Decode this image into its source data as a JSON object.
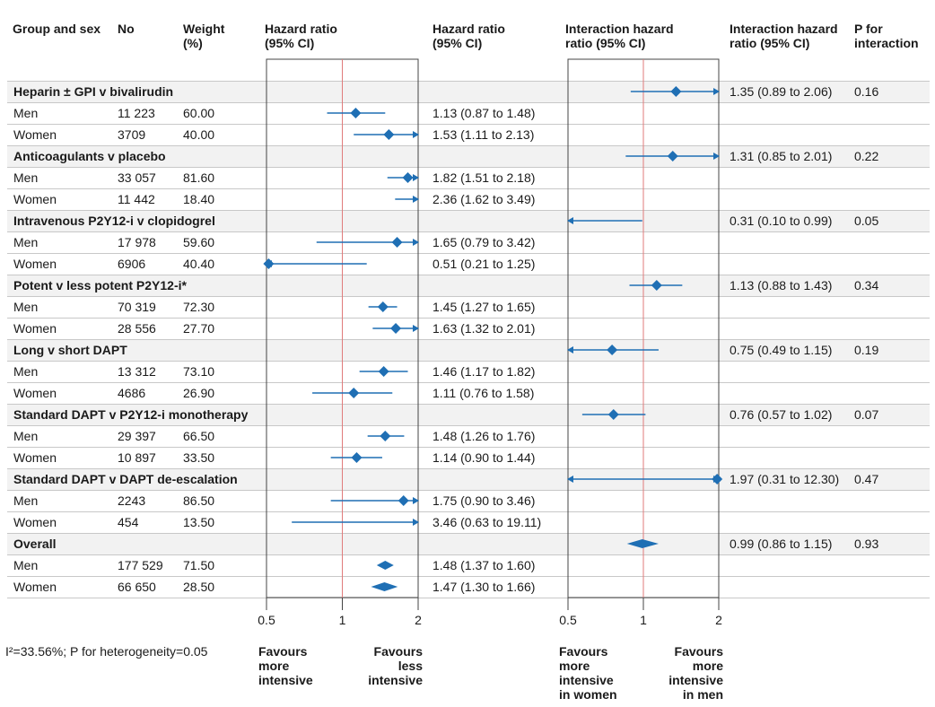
{
  "headers": {
    "group": "Group and sex",
    "no": "No",
    "weight": "Weight\n(%)",
    "hr_plot": "Hazard ratio\n(95% CI)",
    "hr_text": "Hazard ratio\n(95% CI)",
    "ihr_plot": "Interaction hazard\nratio (95% CI)",
    "ihr_text": "Interaction hazard\nratio (95% CI)",
    "p": "P for\ninteraction"
  },
  "footnote": "I²=33.56%; P for heterogeneity=0.05",
  "favours": {
    "left_hr": "Favours\nmore\nintensive",
    "right_hr": "Favours\nless\nintensive",
    "left_ihr": "Favours\nmore\nintensive\nin women",
    "right_ihr": "Favours\nmore\nintensive\nin men"
  },
  "colors": {
    "marker": "#1f6fb4",
    "refline": "#e07b7b",
    "band": "#f2f2f2",
    "frame": "#444444"
  },
  "chart_data": [
    {
      "type": "forest",
      "title": "Hazard ratio (95% CI)",
      "scale": "log",
      "xlim": [
        0.5,
        2
      ],
      "ticks": [
        "0.5",
        "1",
        "2"
      ],
      "reference": 1,
      "rows": [
        {
          "group": "Heparin ± GPI v bivalirudin",
          "label": "Men",
          "n": "11 223",
          "weight": "60.00",
          "hr": 1.13,
          "lo": 0.87,
          "hi": 1.48,
          "text": "1.13 (0.87 to 1.48)"
        },
        {
          "group": "Heparin ± GPI v bivalirudin",
          "label": "Women",
          "n": "3709",
          "weight": "40.00",
          "hr": 1.53,
          "lo": 1.11,
          "hi": 2.13,
          "text": "1.53 (1.11 to 2.13)"
        },
        {
          "group": "Anticoagulants v placebo",
          "label": "Men",
          "n": "33 057",
          "weight": "81.60",
          "hr": 1.82,
          "lo": 1.51,
          "hi": 2.18,
          "text": "1.82 (1.51 to 2.18)"
        },
        {
          "group": "Anticoagulants v placebo",
          "label": "Women",
          "n": "11 442",
          "weight": "18.40",
          "hr": 2.36,
          "lo": 1.62,
          "hi": 3.49,
          "text": "2.36 (1.62 to 3.49)"
        },
        {
          "group": "Intravenous P2Y12-i v clopidogrel",
          "label": "Men",
          "n": "17 978",
          "weight": "59.60",
          "hr": 1.65,
          "lo": 0.79,
          "hi": 3.42,
          "text": "1.65 (0.79 to 3.42)"
        },
        {
          "group": "Intravenous P2Y12-i v clopidogrel",
          "label": "Women",
          "n": "6906",
          "weight": "40.40",
          "hr": 0.51,
          "lo": 0.21,
          "hi": 1.25,
          "text": "0.51 (0.21 to 1.25)"
        },
        {
          "group": "Potent v less potent P2Y12-i*",
          "label": "Men",
          "n": "70 319",
          "weight": "72.30",
          "hr": 1.45,
          "lo": 1.27,
          "hi": 1.65,
          "text": "1.45 (1.27 to 1.65)"
        },
        {
          "group": "Potent v less potent P2Y12-i*",
          "label": "Women",
          "n": "28 556",
          "weight": "27.70",
          "hr": 1.63,
          "lo": 1.32,
          "hi": 2.01,
          "text": "1.63 (1.32 to 2.01)"
        },
        {
          "group": "Long v short DAPT",
          "label": "Men",
          "n": "13 312",
          "weight": "73.10",
          "hr": 1.46,
          "lo": 1.17,
          "hi": 1.82,
          "text": "1.46 (1.17 to 1.82)"
        },
        {
          "group": "Long v short DAPT",
          "label": "Women",
          "n": "4686",
          "weight": "26.90",
          "hr": 1.11,
          "lo": 0.76,
          "hi": 1.58,
          "text": "1.11 (0.76 to 1.58)"
        },
        {
          "group": "Standard DAPT v P2Y12-i monotherapy",
          "label": "Men",
          "n": "29 397",
          "weight": "66.50",
          "hr": 1.48,
          "lo": 1.26,
          "hi": 1.76,
          "text": "1.48 (1.26 to 1.76)"
        },
        {
          "group": "Standard DAPT v P2Y12-i monotherapy",
          "label": "Women",
          "n": "10 897",
          "weight": "33.50",
          "hr": 1.14,
          "lo": 0.9,
          "hi": 1.44,
          "text": "1.14 (0.90 to 1.44)"
        },
        {
          "group": "Standard DAPT v DAPT de-escalation",
          "label": "Men",
          "n": "2243",
          "weight": "86.50",
          "hr": 1.75,
          "lo": 0.9,
          "hi": 3.46,
          "text": "1.75 (0.90 to 3.46)"
        },
        {
          "group": "Standard DAPT v DAPT de-escalation",
          "label": "Women",
          "n": "454",
          "weight": "13.50",
          "hr": 3.46,
          "lo": 0.63,
          "hi": 19.11,
          "text": "3.46 (0.63 to 19.11)"
        },
        {
          "group": "Overall",
          "label": "Men",
          "n": "177 529",
          "weight": "71.50",
          "hr": 1.48,
          "lo": 1.37,
          "hi": 1.6,
          "text": "1.48 (1.37 to 1.60)",
          "pooled": true
        },
        {
          "group": "Overall",
          "label": "Women",
          "n": "66 650",
          "weight": "28.50",
          "hr": 1.47,
          "lo": 1.3,
          "hi": 1.66,
          "text": "1.47 (1.30 to 1.66)",
          "pooled": true
        }
      ]
    },
    {
      "type": "forest",
      "title": "Interaction hazard ratio (95% CI)",
      "scale": "log",
      "xlim": [
        0.5,
        2
      ],
      "ticks": [
        "0.5",
        "1",
        "2"
      ],
      "reference": 1,
      "rows": [
        {
          "group": "Heparin ± GPI v bivalirudin",
          "ihr": 1.35,
          "lo": 0.89,
          "hi": 2.06,
          "text": "1.35 (0.89 to 2.06)",
          "p": "0.16"
        },
        {
          "group": "Anticoagulants v placebo",
          "ihr": 1.31,
          "lo": 0.85,
          "hi": 2.01,
          "text": "1.31 (0.85 to 2.01)",
          "p": "0.22"
        },
        {
          "group": "Intravenous P2Y12-i v clopidogrel",
          "ihr": 0.31,
          "lo": 0.1,
          "hi": 0.99,
          "text": "0.31 (0.10 to 0.99)",
          "p": "0.05"
        },
        {
          "group": "Potent v less potent P2Y12-i*",
          "ihr": 1.13,
          "lo": 0.88,
          "hi": 1.43,
          "text": "1.13 (0.88 to 1.43)",
          "p": "0.34"
        },
        {
          "group": "Long v short DAPT",
          "ihr": 0.75,
          "lo": 0.49,
          "hi": 1.15,
          "text": "0.75 (0.49 to 1.15)",
          "p": "0.19"
        },
        {
          "group": "Standard DAPT v P2Y12-i monotherapy",
          "ihr": 0.76,
          "lo": 0.57,
          "hi": 1.02,
          "text": "0.76 (0.57 to 1.02)",
          "p": "0.07"
        },
        {
          "group": "Standard DAPT v DAPT de-escalation",
          "ihr": 1.97,
          "lo": 0.31,
          "hi": 12.3,
          "text": "1.97 (0.31 to 12.30)",
          "p": "0.47"
        },
        {
          "group": "Overall",
          "ihr": 0.99,
          "lo": 0.86,
          "hi": 1.15,
          "text": "0.99 (0.86 to 1.15)",
          "p": "0.93",
          "pooled": true
        }
      ]
    }
  ]
}
